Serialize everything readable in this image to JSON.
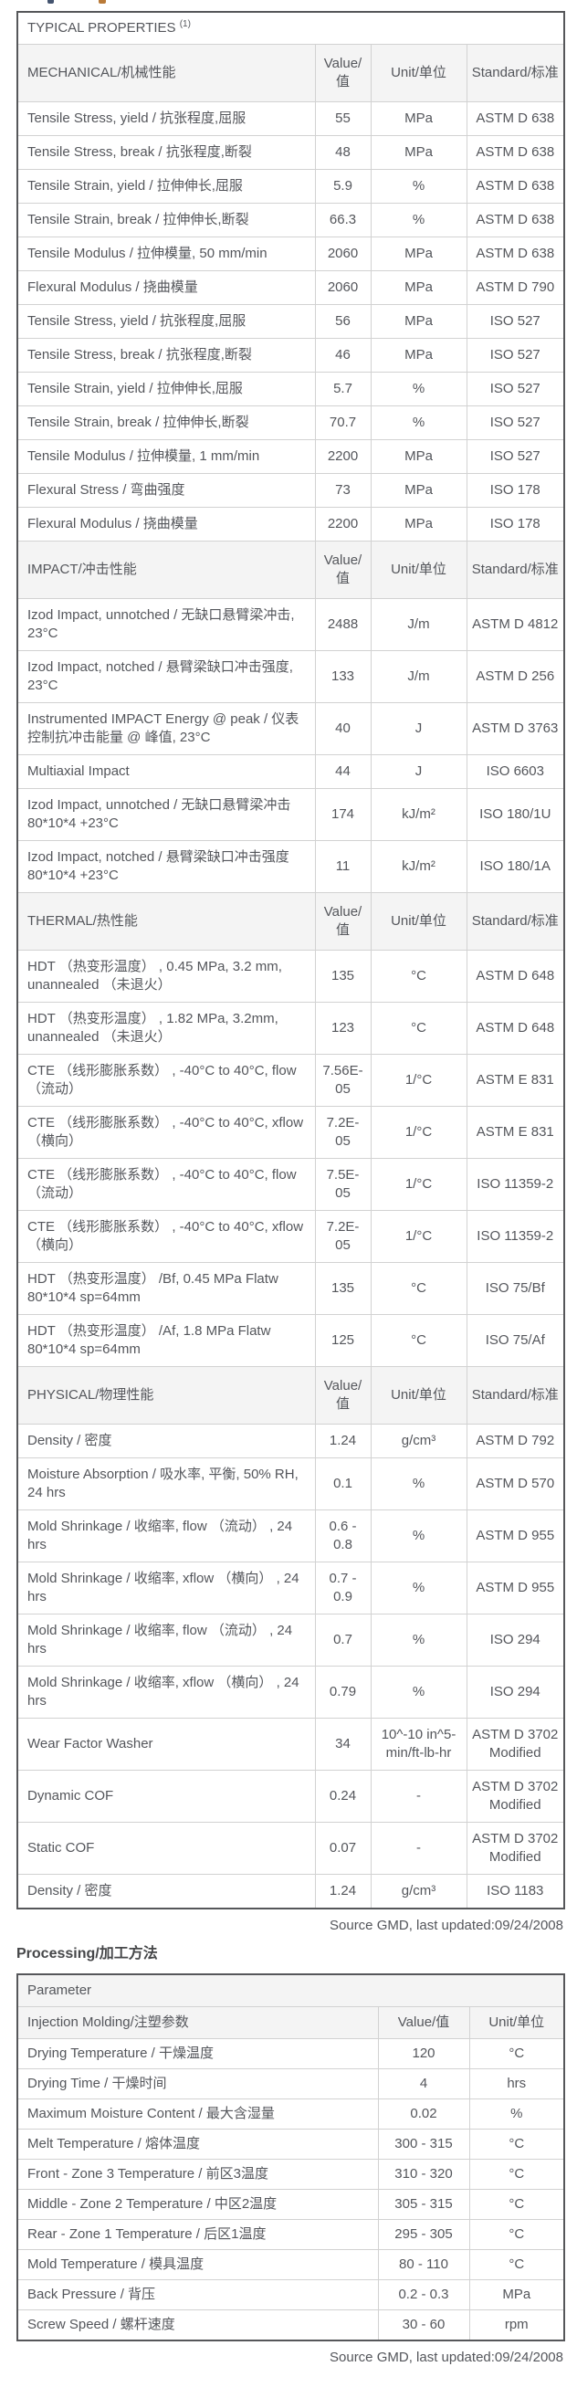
{
  "typical_properties": {
    "title": "TYPICAL PROPERTIES",
    "title_sup": "(1)",
    "col_headers": {
      "value": "Value/值",
      "unit": "Unit/单位",
      "standard": "Standard/标准"
    },
    "sections": [
      {
        "name": "MECHANICAL/机械性能",
        "rows": [
          [
            "Tensile Stress, yield / 抗张程度,屈服",
            "55",
            "MPa",
            "ASTM D 638"
          ],
          [
            "Tensile Stress, break / 抗张程度,断裂",
            "48",
            "MPa",
            "ASTM D 638"
          ],
          [
            "Tensile Strain, yield / 拉伸伸长,屈服",
            "5.9",
            "%",
            "ASTM D 638"
          ],
          [
            "Tensile Strain, break / 拉伸伸长,断裂",
            "66.3",
            "%",
            "ASTM D 638"
          ],
          [
            "Tensile Modulus / 拉伸模量, 50 mm/min",
            "2060",
            "MPa",
            "ASTM D 638"
          ],
          [
            "Flexural Modulus / 挠曲模量",
            "2060",
            "MPa",
            "ASTM D 790"
          ],
          [
            "Tensile Stress, yield / 抗张程度,屈服",
            "56",
            "MPa",
            "ISO 527"
          ],
          [
            "Tensile Stress, break / 抗张程度,断裂",
            "46",
            "MPa",
            "ISO 527"
          ],
          [
            "Tensile Strain, yield / 拉伸伸长,屈服",
            "5.7",
            "%",
            "ISO 527"
          ],
          [
            "Tensile Strain, break / 拉伸伸长,断裂",
            "70.7",
            "%",
            "ISO 527"
          ],
          [
            "Tensile Modulus / 拉伸模量, 1 mm/min",
            "2200",
            "MPa",
            "ISO 527"
          ],
          [
            "Flexural Stress / 弯曲强度",
            "73",
            "MPa",
            "ISO 178"
          ],
          [
            "Flexural Modulus / 挠曲模量",
            "2200",
            "MPa",
            "ISO 178"
          ]
        ]
      },
      {
        "name": "IMPACT/冲击性能",
        "rows": [
          [
            "Izod Impact, unnotched / 无缺口悬臂梁冲击, 23°C",
            "2488",
            "J/m",
            "ASTM D 4812"
          ],
          [
            "Izod Impact, notched / 悬臂梁缺口冲击强度, 23°C",
            "133",
            "J/m",
            "ASTM D 256"
          ],
          [
            "Instrumented IMPACT Energy @ peak / 仪表控制抗冲击能量 @ 峰值, 23°C",
            "40",
            "J",
            "ASTM D 3763"
          ],
          [
            "Multiaxial Impact",
            "44",
            "J",
            "ISO 6603"
          ],
          [
            "Izod Impact, unnotched / 无缺口悬臂梁冲击 80*10*4 +23°C",
            "174",
            "kJ/m²",
            "ISO 180/1U"
          ],
          [
            "Izod Impact, notched / 悬臂梁缺口冲击强度 80*10*4 +23°C",
            "11",
            "kJ/m²",
            "ISO 180/1A"
          ]
        ]
      },
      {
        "name": "THERMAL/热性能",
        "rows": [
          [
            "HDT （热变形温度） , 0.45 MPa, 3.2 mm, unannealed （未退火）",
            "135",
            "°C",
            "ASTM D 648"
          ],
          [
            "HDT （热变形温度） , 1.82 MPa, 3.2mm, unannealed （未退火）",
            "123",
            "°C",
            "ASTM D 648"
          ],
          [
            "CTE （线形膨胀系数） , -40°C to 40°C, flow （流动）",
            "7.56E-05",
            "1/°C",
            "ASTM E 831"
          ],
          [
            "CTE （线形膨胀系数） , -40°C to 40°C, xflow （横向）",
            "7.2E-05",
            "1/°C",
            "ASTM E 831"
          ],
          [
            "CTE （线形膨胀系数） , -40°C to 40°C, flow （流动）",
            "7.5E-05",
            "1/°C",
            "ISO 11359-2"
          ],
          [
            "CTE （线形膨胀系数） , -40°C to 40°C, xflow （横向）",
            "7.2E-05",
            "1/°C",
            "ISO 11359-2"
          ],
          [
            "HDT （热变形温度） /Bf, 0.45 MPa Flatw 80*10*4 sp=64mm",
            "135",
            "°C",
            "ISO 75/Bf"
          ],
          [
            "HDT （热变形温度） /Af, 1.8 MPa Flatw 80*10*4 sp=64mm",
            "125",
            "°C",
            "ISO 75/Af"
          ]
        ]
      },
      {
        "name": "PHYSICAL/物理性能",
        "rows": [
          [
            "Density / 密度",
            "1.24",
            "g/cm³",
            "ASTM D 792"
          ],
          [
            "Moisture Absorption / 吸水率, 平衡, 50% RH, 24 hrs",
            "0.1",
            "%",
            "ASTM D 570"
          ],
          [
            "Mold Shrinkage / 收缩率, flow （流动） , 24 hrs",
            "0.6 - 0.8",
            "%",
            "ASTM D 955"
          ],
          [
            "Mold Shrinkage / 收缩率, xflow （横向） , 24 hrs",
            "0.7 - 0.9",
            "%",
            "ASTM D 955"
          ],
          [
            "Mold Shrinkage / 收缩率, flow （流动） , 24 hrs",
            "0.7",
            "%",
            "ISO 294"
          ],
          [
            "Mold Shrinkage / 收缩率, xflow （横向） , 24 hrs",
            "0.79",
            "%",
            "ISO 294"
          ],
          [
            "Wear Factor Washer",
            "34",
            "10^-10 in^5-min/ft-lb-hr",
            "ASTM D 3702 Modified"
          ],
          [
            "Dynamic COF",
            "0.24",
            "-",
            "ASTM D 3702 Modified"
          ],
          [
            "Static COF",
            "0.07",
            "-",
            "ASTM D 3702 Modified"
          ],
          [
            "Density / 密度",
            "1.24",
            "g/cm³",
            "ISO 1183"
          ]
        ]
      }
    ],
    "source": "Source GMD, last updated:09/24/2008"
  },
  "processing": {
    "heading": "Processing/加工方法",
    "param_header": "Parameter",
    "group_header": "Injection Molding/注塑参数",
    "col_headers": {
      "value": "Value/值",
      "unit": "Unit/单位"
    },
    "rows": [
      [
        "Drying Temperature / 干燥温度",
        "120",
        "°C"
      ],
      [
        "Drying Time / 干燥时间",
        "4",
        "hrs"
      ],
      [
        "Maximum Moisture Content / 最大含湿量",
        "0.02",
        "%"
      ],
      [
        "Melt Temperature / 熔体温度",
        "300 - 315",
        "°C"
      ],
      [
        "Front - Zone 3 Temperature / 前区3温度",
        "310 - 320",
        "°C"
      ],
      [
        "Middle - Zone 2 Temperature / 中区2温度",
        "305 - 315",
        "°C"
      ],
      [
        "Rear - Zone 1 Temperature / 后区1温度",
        "295 - 305",
        "°C"
      ],
      [
        "Mold Temperature / 模具温度",
        "80 - 110",
        "°C"
      ],
      [
        "Back Pressure / 背压",
        "0.2 - 0.3",
        "MPa"
      ],
      [
        "Screw Speed / 螺杆速度",
        "30 - 60",
        "rpm"
      ]
    ],
    "source": "Source GMD, last updated:09/24/2008"
  },
  "colors": {
    "text": "#54565b",
    "outer_border": "#56575a",
    "inner_border": "#d2d2d2",
    "section_header_bg": "#f4f4f4",
    "page_bg": "#ffffff"
  }
}
